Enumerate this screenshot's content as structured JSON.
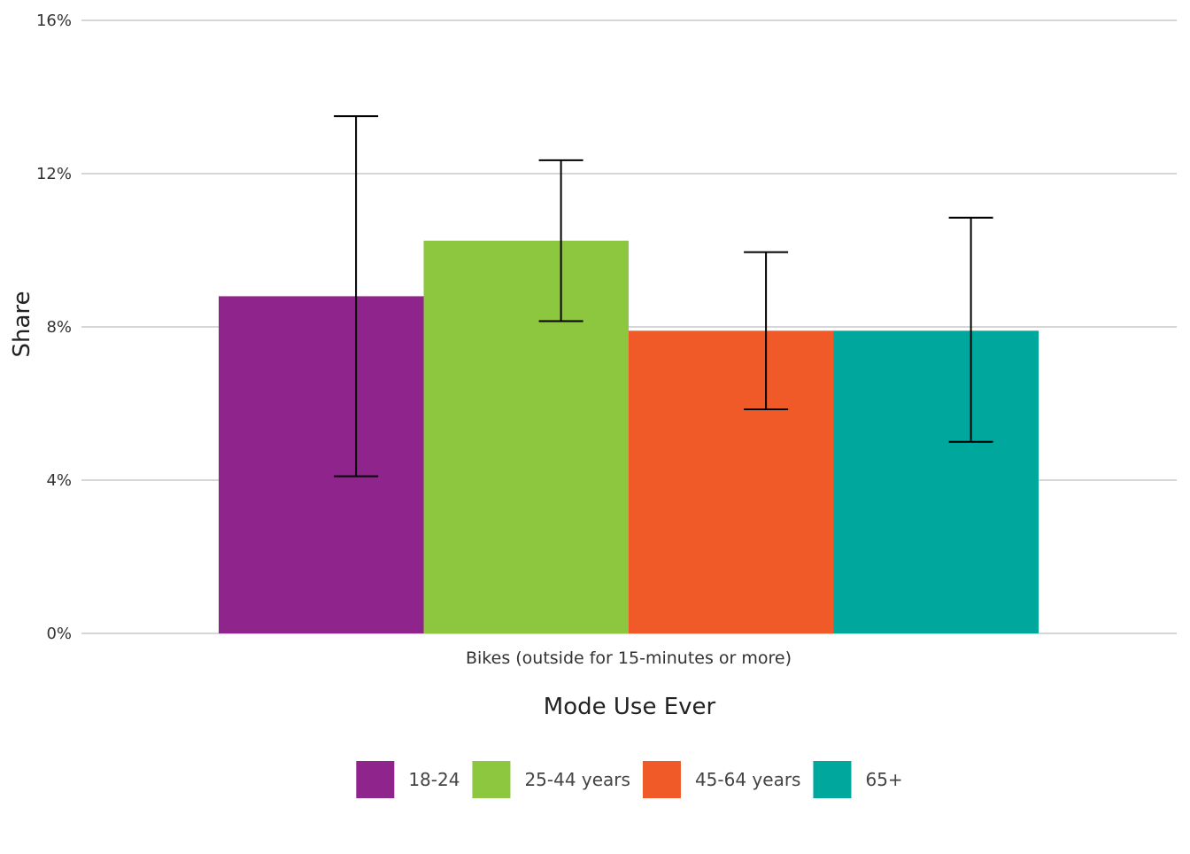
{
  "chart_data": {
    "type": "bar",
    "title": "",
    "xlabel": "Mode Use Ever",
    "ylabel": "Share",
    "categories": [
      "Bikes (outside for 15-minutes or more)"
    ],
    "ylim": [
      0,
      16
    ],
    "yticks": [
      0,
      4,
      8,
      12,
      16
    ],
    "ytick_format": "%",
    "grid": "horizontal",
    "legend_position": "bottom",
    "series": [
      {
        "name": "18-24",
        "color": "#8E248C",
        "values": [
          8.8
        ],
        "err_low": [
          4.1
        ],
        "err_high": [
          13.5
        ]
      },
      {
        "name": "25-44 years",
        "color": "#8DC63F",
        "values": [
          10.25
        ],
        "err_low": [
          8.15
        ],
        "err_high": [
          12.35
        ]
      },
      {
        "name": "45-64 years",
        "color": "#F05A28",
        "values": [
          7.9
        ],
        "err_low": [
          5.85
        ],
        "err_high": [
          9.95
        ]
      },
      {
        "name": "65+",
        "color": "#00A79D",
        "values": [
          7.9
        ],
        "err_low": [
          5.0
        ],
        "err_high": [
          10.85
        ]
      }
    ]
  }
}
